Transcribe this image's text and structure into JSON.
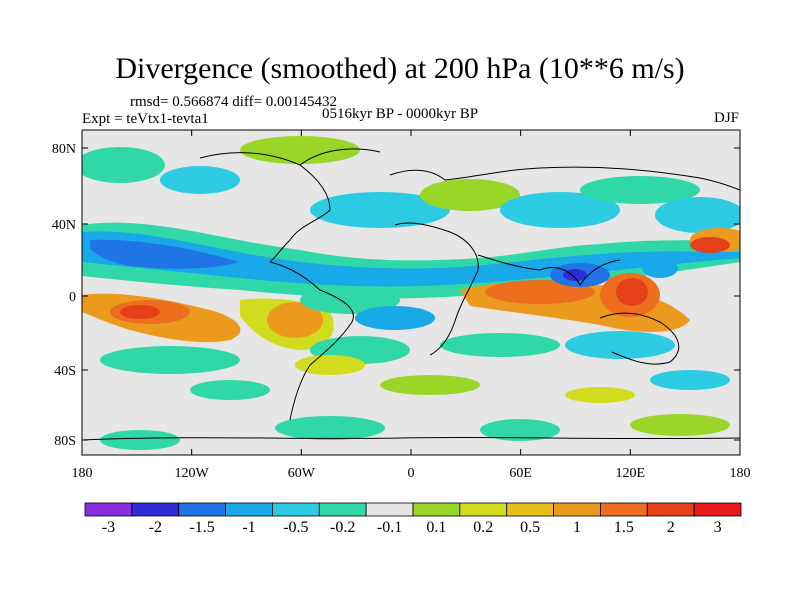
{
  "title": "Divergence (smoothed) at 200 hPa (10**6 m/s)",
  "stats": "rmsd= 0.566874 diff= 0.00145432",
  "experiment": "Expt = teVtx1-tevta1",
  "period": "0516kyr BP - 0000kyr BP",
  "season": "DJF",
  "map": {
    "lon_ticks": [
      "180",
      "120W",
      "60W",
      "0",
      "60E",
      "120E",
      "180"
    ],
    "lat_ticks": [
      "80N",
      "40N",
      "0",
      "40S",
      "80S"
    ]
  },
  "colorbar": {
    "colors": [
      "#8b2ee0",
      "#2d2cd6",
      "#1f74e6",
      "#19a8e8",
      "#2ccbe2",
      "#30d8a8",
      "#e6e6e6",
      "#9ad628",
      "#d2dc1e",
      "#e8be18",
      "#ec9a1e",
      "#ec6e1e",
      "#e64018",
      "#e81a1a"
    ],
    "labels": [
      "-3",
      "-2",
      "-1.5",
      "-1",
      "-0.5",
      "-0.2",
      "-0.1",
      "0.1",
      "0.2",
      "0.5",
      "1",
      "1.5",
      "2",
      "3"
    ]
  }
}
